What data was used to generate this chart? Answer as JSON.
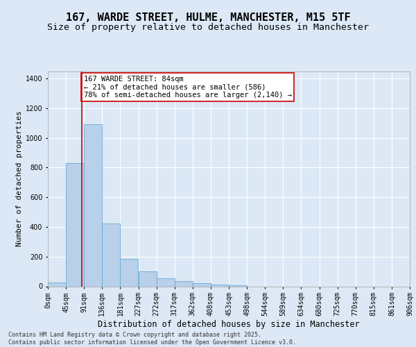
{
  "title": "167, WARDE STREET, HULME, MANCHESTER, M15 5TF",
  "subtitle": "Size of property relative to detached houses in Manchester",
  "xlabel": "Distribution of detached houses by size in Manchester",
  "ylabel": "Number of detached properties",
  "bin_labels": [
    "0sqm",
    "45sqm",
    "91sqm",
    "136sqm",
    "181sqm",
    "227sqm",
    "272sqm",
    "317sqm",
    "362sqm",
    "408sqm",
    "453sqm",
    "498sqm",
    "544sqm",
    "589sqm",
    "634sqm",
    "680sqm",
    "725sqm",
    "770sqm",
    "815sqm",
    "861sqm",
    "906sqm"
  ],
  "bar_values": [
    25,
    830,
    1090,
    425,
    185,
    100,
    55,
    35,
    20,
    10,
    5,
    0,
    0,
    0,
    0,
    0,
    0,
    0,
    0,
    0
  ],
  "bar_color": "#b8d0ea",
  "bar_edge_color": "#6aaad4",
  "background_color": "#dce8f5",
  "grid_color": "#ffffff",
  "vline_x": 84,
  "vline_color": "#cc0000",
  "annotation_text": "167 WARDE STREET: 84sqm\n← 21% of detached houses are smaller (586)\n78% of semi-detached houses are larger (2,140) →",
  "annotation_box_facecolor": "#ffffff",
  "annotation_box_edgecolor": "#cc0000",
  "ylim": [
    0,
    1450
  ],
  "bin_width": 45,
  "num_bars": 20,
  "footer_line1": "Contains HM Land Registry data © Crown copyright and database right 2025.",
  "footer_line2": "Contains public sector information licensed under the Open Government Licence v3.0.",
  "title_fontsize": 11,
  "subtitle_fontsize": 9.5,
  "ylabel_fontsize": 8,
  "xlabel_fontsize": 8.5,
  "tick_fontsize": 7,
  "annotation_fontsize": 7.5,
  "footer_fontsize": 6
}
